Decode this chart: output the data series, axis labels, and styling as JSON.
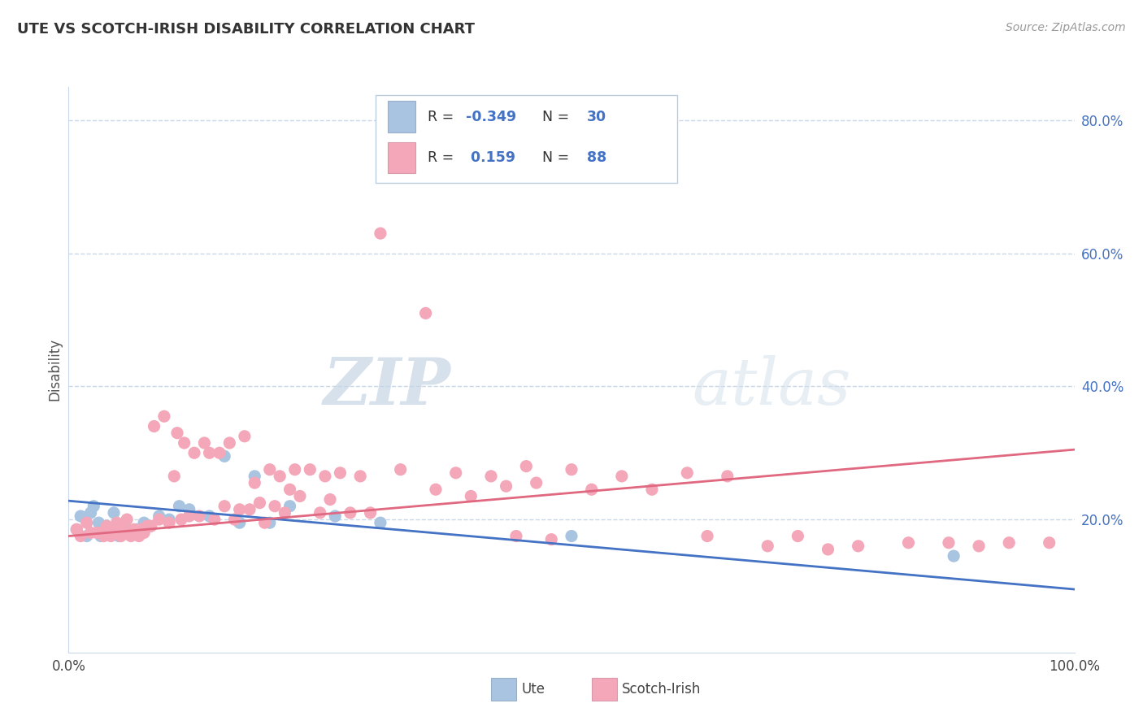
{
  "title": "UTE VS SCOTCH-IRISH DISABILITY CORRELATION CHART",
  "source": "Source: ZipAtlas.com",
  "ylabel": "Disability",
  "xmin": 0.0,
  "xmax": 1.0,
  "ymin": 0.0,
  "ymax": 0.85,
  "yticks": [
    0.2,
    0.4,
    0.6,
    0.8
  ],
  "ute_color": "#a8c4e0",
  "scotch_color": "#f4a7b9",
  "ute_line_color": "#4472c4",
  "scotch_line_color": "#e06880",
  "ute_R": -0.349,
  "ute_N": 30,
  "scotch_R": 0.159,
  "scotch_N": 88,
  "watermark_zip": "ZIP",
  "watermark_atlas": "atlas",
  "background_color": "#ffffff",
  "grid_color": "#c8d8e8",
  "ute_scatter_x": [
    0.008,
    0.012,
    0.018,
    0.022,
    0.025,
    0.03,
    0.032,
    0.038,
    0.042,
    0.045,
    0.05,
    0.055,
    0.06,
    0.068,
    0.075,
    0.08,
    0.09,
    0.1,
    0.11,
    0.12,
    0.14,
    0.155,
    0.17,
    0.185,
    0.2,
    0.22,
    0.265,
    0.31,
    0.5,
    0.88
  ],
  "ute_scatter_y": [
    0.185,
    0.205,
    0.175,
    0.21,
    0.22,
    0.195,
    0.175,
    0.19,
    0.185,
    0.21,
    0.175,
    0.19,
    0.18,
    0.185,
    0.195,
    0.19,
    0.205,
    0.2,
    0.22,
    0.215,
    0.205,
    0.295,
    0.195,
    0.265,
    0.195,
    0.22,
    0.205,
    0.195,
    0.175,
    0.145
  ],
  "ute_line_x0": 0.0,
  "ute_line_y0": 0.228,
  "ute_line_x1": 1.0,
  "ute_line_y1": 0.095,
  "scotch_line_x0": 0.0,
  "scotch_line_y0": 0.175,
  "scotch_line_x1": 1.0,
  "scotch_line_y1": 0.305,
  "scotch_scatter_x": [
    0.008,
    0.012,
    0.018,
    0.022,
    0.028,
    0.032,
    0.035,
    0.038,
    0.042,
    0.045,
    0.048,
    0.052,
    0.055,
    0.058,
    0.062,
    0.065,
    0.07,
    0.072,
    0.075,
    0.078,
    0.082,
    0.085,
    0.09,
    0.095,
    0.1,
    0.105,
    0.108,
    0.112,
    0.115,
    0.12,
    0.125,
    0.13,
    0.135,
    0.14,
    0.145,
    0.15,
    0.155,
    0.16,
    0.165,
    0.17,
    0.175,
    0.18,
    0.185,
    0.19,
    0.195,
    0.2,
    0.205,
    0.21,
    0.215,
    0.22,
    0.225,
    0.23,
    0.24,
    0.25,
    0.255,
    0.26,
    0.27,
    0.28,
    0.29,
    0.3,
    0.31,
    0.33,
    0.355,
    0.365,
    0.385,
    0.4,
    0.42,
    0.435,
    0.445,
    0.455,
    0.465,
    0.48,
    0.5,
    0.52,
    0.55,
    0.58,
    0.615,
    0.635,
    0.655,
    0.695,
    0.725,
    0.755,
    0.785,
    0.835,
    0.875,
    0.905,
    0.935,
    0.975
  ],
  "scotch_scatter_y": [
    0.185,
    0.175,
    0.195,
    0.18,
    0.18,
    0.18,
    0.175,
    0.19,
    0.175,
    0.18,
    0.195,
    0.175,
    0.185,
    0.2,
    0.175,
    0.185,
    0.175,
    0.185,
    0.18,
    0.19,
    0.19,
    0.34,
    0.2,
    0.355,
    0.195,
    0.265,
    0.33,
    0.2,
    0.315,
    0.205,
    0.3,
    0.205,
    0.315,
    0.3,
    0.2,
    0.3,
    0.22,
    0.315,
    0.2,
    0.215,
    0.325,
    0.215,
    0.255,
    0.225,
    0.195,
    0.275,
    0.22,
    0.265,
    0.21,
    0.245,
    0.275,
    0.235,
    0.275,
    0.21,
    0.265,
    0.23,
    0.27,
    0.21,
    0.265,
    0.21,
    0.63,
    0.275,
    0.51,
    0.245,
    0.27,
    0.235,
    0.265,
    0.25,
    0.175,
    0.28,
    0.255,
    0.17,
    0.275,
    0.245,
    0.265,
    0.245,
    0.27,
    0.175,
    0.265,
    0.16,
    0.175,
    0.155,
    0.16,
    0.165,
    0.165,
    0.16,
    0.165,
    0.165
  ]
}
